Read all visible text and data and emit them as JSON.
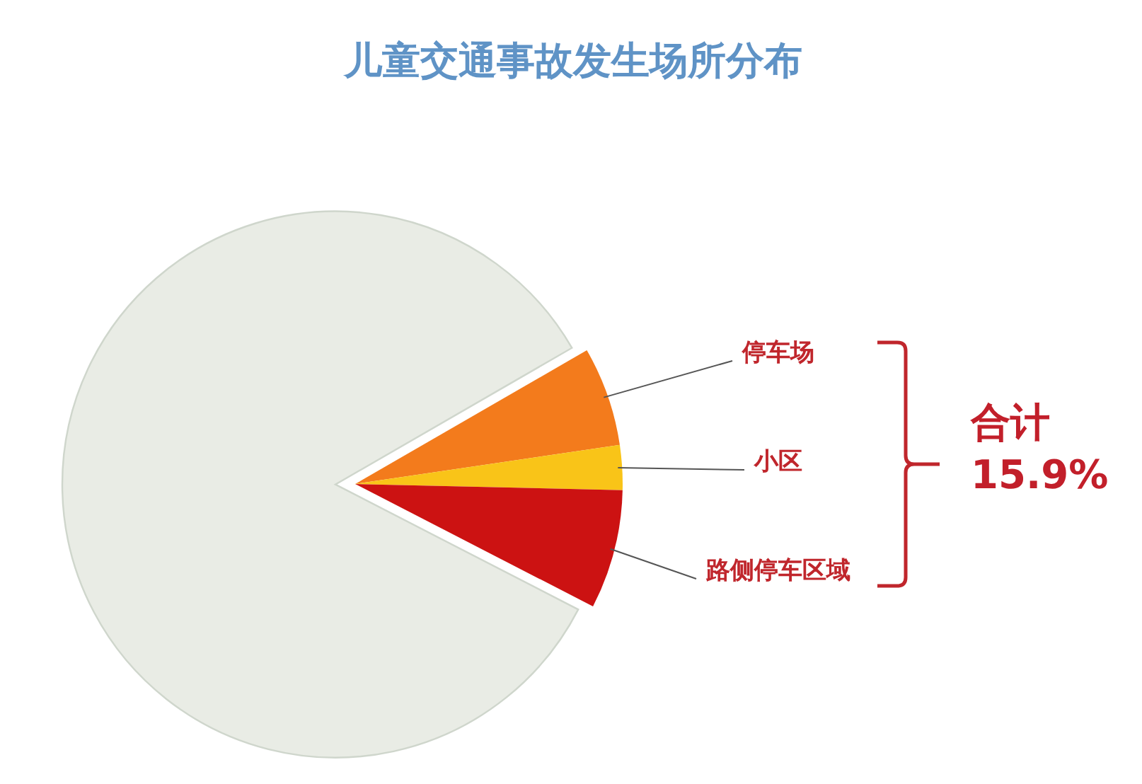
{
  "chart_data": {
    "type": "pie",
    "title": "儿童交通事故发生场所分布",
    "categories": [
      "停车场",
      "小区",
      "路侧停车区域",
      null
    ],
    "values": [
      6.0,
      2.7,
      7.2,
      84.1
    ],
    "colors": [
      "#f37b1c",
      "#f9c418",
      "#cc1212",
      "#e9ece5"
    ],
    "annotations": [
      "合计 15.9%"
    ]
  }
}
